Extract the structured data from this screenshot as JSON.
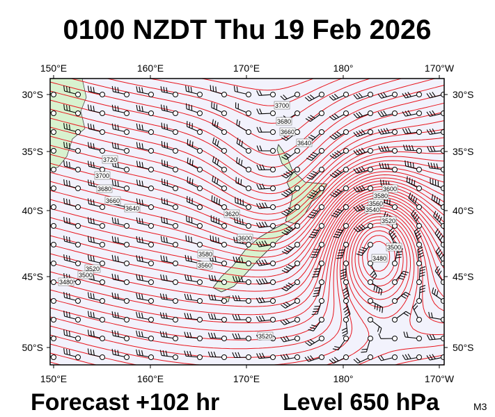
{
  "header": {
    "title": "0100 NZDT Thu 19 Feb 2026"
  },
  "axes": {
    "top_labels": [
      "150°E",
      "160°E",
      "170°E",
      "180°",
      "170°W"
    ],
    "bottom_labels": [
      "150°E",
      "160°E",
      "170°E",
      "180°",
      "170°W"
    ],
    "left_labels": [
      "30°S",
      "35°S",
      "40°S",
      "45°S",
      "50°S"
    ],
    "right_labels": [
      "30°S",
      "35°S",
      "40°S",
      "45°S",
      "50°S"
    ]
  },
  "contour_labels": [
    "3700",
    "3680",
    "3660",
    "3640",
    "3720",
    "3700",
    "3680",
    "3660",
    "3640",
    "3620",
    "3600",
    "3580",
    "3560",
    "3540",
    "3520",
    "3600",
    "3580",
    "3560",
    "3520",
    "3500",
    "3480",
    "3500",
    "3480",
    "3520"
  ],
  "footer": {
    "forecast": "Forecast +102 hr",
    "level": "Level 650 hPa",
    "code": "M3"
  }
}
